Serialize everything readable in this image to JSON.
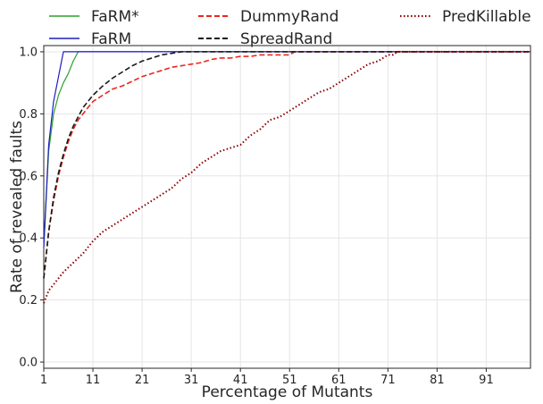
{
  "chart_data": {
    "type": "line",
    "xlabel": "Percentage of Mutants",
    "ylabel": "Rate of revealed faults",
    "xlim": [
      1,
      100
    ],
    "ylim": [
      -0.02,
      1.02
    ],
    "xticks": [
      1,
      11,
      21,
      31,
      41,
      51,
      61,
      71,
      81,
      91
    ],
    "yticks": [
      0.0,
      0.2,
      0.4,
      0.6,
      0.8,
      1.0
    ],
    "xtick_labels": [
      "1",
      "11",
      "21",
      "31",
      "41",
      "51",
      "61",
      "71",
      "81",
      "91"
    ],
    "ytick_labels": [
      "0.0",
      "0.2",
      "0.4",
      "0.6",
      "0.8",
      "1.0"
    ],
    "grid": true,
    "legend": "top, outside plot, 3 columns",
    "series": [
      {
        "name": "FaRM*",
        "color": "#2ca02c",
        "style": "solid",
        "x": [
          1,
          2,
          3,
          4,
          5,
          6,
          7,
          8,
          9,
          100
        ],
        "y": [
          0.37,
          0.68,
          0.8,
          0.86,
          0.9,
          0.93,
          0.97,
          1.0,
          1.0,
          1.0
        ]
      },
      {
        "name": "FaRM",
        "color": "#1f1fbf",
        "style": "solid",
        "x": [
          1,
          2,
          3,
          4,
          5,
          6,
          100
        ],
        "y": [
          0.37,
          0.7,
          0.84,
          0.92,
          1.0,
          1.0,
          1.0
        ]
      },
      {
        "name": "DummyRand",
        "color": "#e8281e",
        "style": "dashed",
        "x": [
          1,
          2,
          3,
          4,
          5,
          6,
          7,
          8,
          9,
          10,
          11,
          13,
          15,
          17,
          19,
          21,
          23,
          25,
          27,
          29,
          31,
          33,
          35,
          37,
          39,
          41,
          43,
          45,
          47,
          49,
          51,
          52,
          55,
          60,
          70,
          80,
          100
        ],
        "y": [
          0.27,
          0.42,
          0.52,
          0.6,
          0.66,
          0.71,
          0.75,
          0.78,
          0.8,
          0.82,
          0.84,
          0.86,
          0.88,
          0.89,
          0.905,
          0.92,
          0.93,
          0.94,
          0.95,
          0.955,
          0.96,
          0.965,
          0.975,
          0.98,
          0.98,
          0.985,
          0.985,
          0.99,
          0.99,
          0.99,
          0.99,
          1.0,
          1.0,
          1.0,
          1.0,
          1.0,
          1.0
        ]
      },
      {
        "name": "SpreadRand",
        "color": "#1a1a1a",
        "style": "dashed",
        "x": [
          1,
          2,
          3,
          4,
          5,
          6,
          7,
          8,
          9,
          10,
          11,
          13,
          15,
          17,
          19,
          21,
          23,
          25,
          27,
          29,
          31,
          50,
          100
        ],
        "y": [
          0.27,
          0.42,
          0.53,
          0.61,
          0.67,
          0.72,
          0.76,
          0.79,
          0.82,
          0.84,
          0.86,
          0.89,
          0.915,
          0.935,
          0.955,
          0.97,
          0.98,
          0.99,
          0.995,
          1.0,
          1.0,
          1.0,
          1.0
        ]
      },
      {
        "name": "PredKillable",
        "color": "#8b0000",
        "style": "dotted",
        "x": [
          1,
          2,
          3,
          5,
          7,
          9,
          11,
          13,
          15,
          17,
          19,
          21,
          23,
          25,
          27,
          29,
          31,
          33,
          35,
          37,
          39,
          41,
          43,
          45,
          47,
          49,
          51,
          53,
          55,
          57,
          59,
          61,
          63,
          65,
          67,
          69,
          71,
          72,
          73,
          80,
          90,
          100
        ],
        "y": [
          0.19,
          0.23,
          0.25,
          0.29,
          0.32,
          0.35,
          0.39,
          0.42,
          0.44,
          0.46,
          0.48,
          0.5,
          0.52,
          0.54,
          0.56,
          0.59,
          0.61,
          0.64,
          0.66,
          0.68,
          0.69,
          0.7,
          0.73,
          0.75,
          0.78,
          0.79,
          0.81,
          0.83,
          0.85,
          0.87,
          0.88,
          0.9,
          0.92,
          0.94,
          0.96,
          0.97,
          0.99,
          0.99,
          1.0,
          1.0,
          1.0,
          1.0
        ]
      }
    ]
  }
}
